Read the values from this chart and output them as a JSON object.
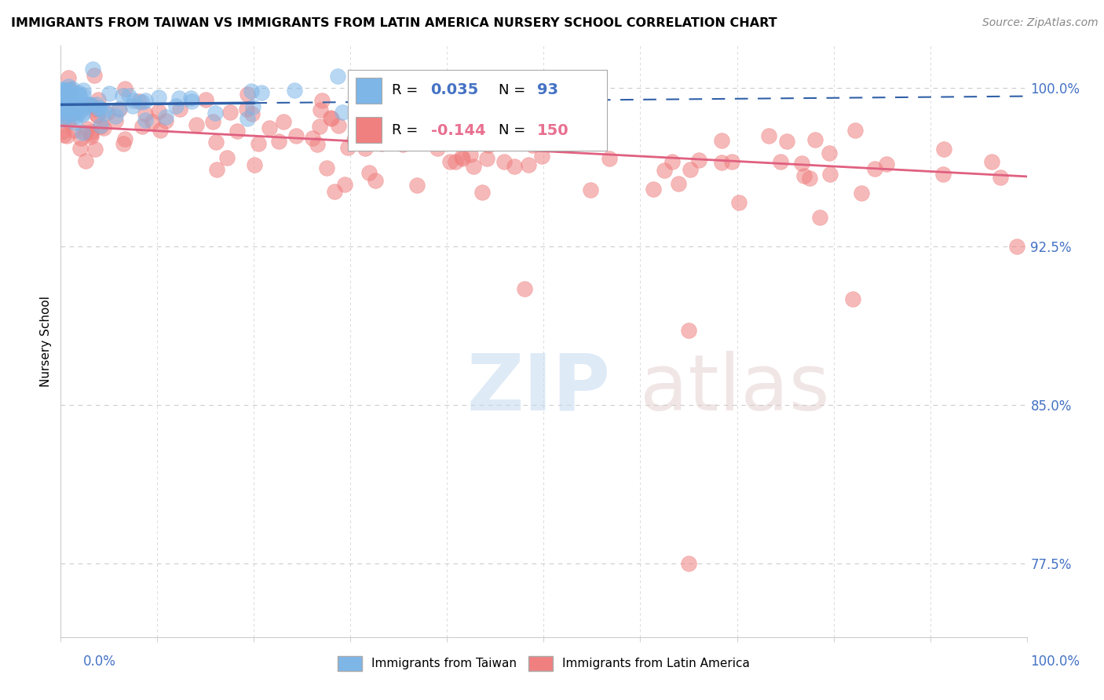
{
  "title": "IMMIGRANTS FROM TAIWAN VS IMMIGRANTS FROM LATIN AMERICA NURSERY SCHOOL CORRELATION CHART",
  "source": "Source: ZipAtlas.com",
  "ylabel": "Nursery School",
  "ytick_vals": [
    77.5,
    85.0,
    92.5,
    100.0
  ],
  "ytick_labels": [
    "77.5%",
    "85.0%",
    "92.5%",
    "100.0%"
  ],
  "xlim": [
    0,
    100
  ],
  "ylim": [
    74,
    102
  ],
  "taiwan_color": "#7EB6E8",
  "taiwan_edge_color": "#5A9FD4",
  "latam_color": "#F08080",
  "latam_edge_color": "#E06060",
  "taiwan_line_color": "#3060A8",
  "latam_line_color": "#E06080",
  "legend_R_taiwan": "0.035",
  "legend_N_taiwan": "93",
  "legend_R_latam": "-0.144",
  "legend_N_latam": "150",
  "R_color_taiwan": "#4472C4",
  "R_color_latam": "#E87090",
  "taiwan_trend_y0": 99.2,
  "taiwan_trend_y1": 99.6,
  "latam_trend_y0": 98.2,
  "latam_trend_y1": 95.8,
  "taiwan_solid_x1": 20,
  "taiwan_solid_y0": 99.2,
  "taiwan_solid_y1": 99.27
}
